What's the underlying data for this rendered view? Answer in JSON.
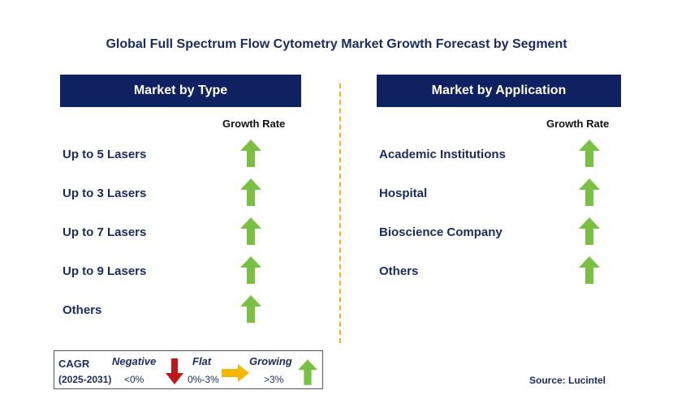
{
  "title": "Global Full Spectrum Flow Cytometry Market Growth Forecast by Segment",
  "left_panel": {
    "header": "Market by Type",
    "growth_label": "Growth Rate",
    "items": [
      {
        "label": "Up to 5 Lasers",
        "trend": "growing"
      },
      {
        "label": "Up to 3 Lasers",
        "trend": "growing"
      },
      {
        "label": "Up to 7 Lasers",
        "trend": "growing"
      },
      {
        "label": "Up to 9 Lasers",
        "trend": "growing"
      },
      {
        "label": "Others",
        "trend": "growing"
      }
    ]
  },
  "right_panel": {
    "header": "Market by Application",
    "growth_label": "Growth Rate",
    "items": [
      {
        "label": "Academic Institutions",
        "trend": "growing"
      },
      {
        "label": "Hospital",
        "trend": "growing"
      },
      {
        "label": "Bioscience Company",
        "trend": "growing"
      },
      {
        "label": "Others",
        "trend": "growing"
      }
    ]
  },
  "legend": {
    "cagr": "CAGR",
    "period": "(2025-2031)",
    "negative_label": "Negative",
    "negative_range": "<0%",
    "flat_label": "Flat",
    "flat_range": "0%-3%",
    "growing_label": "Growing",
    "growing_range": ">3%"
  },
  "source": "Source: Lucintel",
  "colors": {
    "header_bg": "#0f2160",
    "growing": "#7ac143",
    "negative": "#c0161c",
    "flat": "#f5b800",
    "divider": "#f2b21c"
  }
}
